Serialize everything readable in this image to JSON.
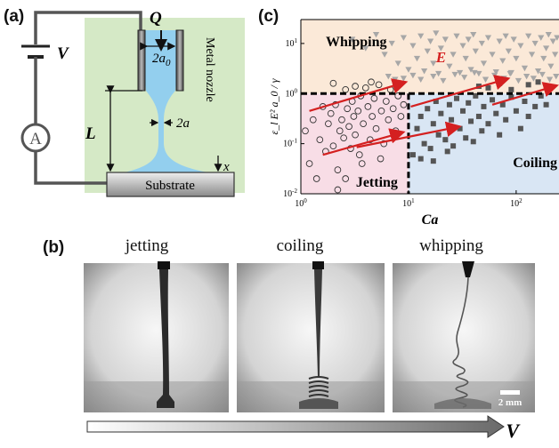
{
  "panel_a": {
    "label": "(a)",
    "flow_label": "Q",
    "voltage_label": "V",
    "ammeter_label": "A",
    "length_label": "L",
    "nozzle_diameter_label": "2a",
    "nozzle_diameter_sub": "0",
    "jet_diameter_label": "2a",
    "axis_x_label": "x",
    "nozzle_label": "Metal nozzle",
    "substrate_label": "Substrate",
    "colors": {
      "background": "#d5e9c6",
      "fluid": "#93cfee",
      "substrate": "#c4c4c4"
    }
  },
  "panel_c": {
    "label": "(c)",
    "regions": {
      "whipping": "Whipping",
      "jetting": "Jetting",
      "coiling": "Coiling"
    },
    "field_label": "E",
    "colors": {
      "whipping": "#fbe9d8",
      "jetting": "#f8dde6",
      "coiling": "#d9e6f4",
      "arrow": "#d42020"
    }
  },
  "chart_data": {
    "type": "scatter",
    "xlabel": "Ca",
    "ylabel": "ε_l E² a_0 / γ",
    "x_scale": "log",
    "y_scale": "log",
    "xlim": [
      1,
      250
    ],
    "ylim": [
      0.01,
      30
    ],
    "x_ticks": [
      "10^0",
      "10^1",
      "10^2"
    ],
    "y_ticks": [
      "10^-2",
      "10^-1",
      "10^0",
      "10^1"
    ],
    "boundaries": {
      "horizontal_y": 1,
      "vertical_x": 10
    },
    "series": [
      {
        "name": "Jetting",
        "marker": "open-circle",
        "color": "#333333",
        "points": [
          [
            1.1,
            0.18
          ],
          [
            1.2,
            0.04
          ],
          [
            1.3,
            0.3
          ],
          [
            1.5,
            0.12
          ],
          [
            1.6,
            0.55
          ],
          [
            1.7,
            0.07
          ],
          [
            1.8,
            0.25
          ],
          [
            1.9,
            0.4
          ],
          [
            2.0,
            0.09
          ],
          [
            2.1,
            0.6
          ],
          [
            2.2,
            0.03
          ],
          [
            2.3,
            0.18
          ],
          [
            2.4,
            0.3
          ],
          [
            2.5,
            0.13
          ],
          [
            2.6,
            0.02
          ],
          [
            2.7,
            0.5
          ],
          [
            2.8,
            0.22
          ],
          [
            2.9,
            0.08
          ],
          [
            3.0,
            0.7
          ],
          [
            3.1,
            0.35
          ],
          [
            3.2,
            0.15
          ],
          [
            3.4,
            0.45
          ],
          [
            3.5,
            0.06
          ],
          [
            3.6,
            0.9
          ],
          [
            3.8,
            0.25
          ],
          [
            4.0,
            1.3
          ],
          [
            4.2,
            0.55
          ],
          [
            4.4,
            0.12
          ],
          [
            4.6,
            0.35
          ],
          [
            4.8,
            0.8
          ],
          [
            5.0,
            0.2
          ],
          [
            5.3,
            1.5
          ],
          [
            5.6,
            0.45
          ],
          [
            5.9,
            0.1
          ],
          [
            6.2,
            0.7
          ],
          [
            6.5,
            0.3
          ],
          [
            6.8,
            1.2
          ],
          [
            7.2,
            0.5
          ],
          [
            7.6,
            0.18
          ],
          [
            8.0,
            0.9
          ],
          [
            8.5,
            0.35
          ],
          [
            9.0,
            0.6
          ],
          [
            2.0,
            1.6
          ],
          [
            2.6,
            1.2
          ],
          [
            3.2,
            1.4
          ],
          [
            4.5,
            1.7
          ],
          [
            1.4,
            0.02
          ],
          [
            2.2,
            0.012
          ],
          [
            3.7,
            0.04
          ],
          [
            5.5,
            0.05
          ]
        ]
      },
      {
        "name": "Coiling",
        "marker": "filled-square",
        "color": "#555555",
        "points": [
          [
            11,
            0.06
          ],
          [
            12,
            0.2
          ],
          [
            13,
            0.35
          ],
          [
            14,
            0.1
          ],
          [
            15,
            0.5
          ],
          [
            16,
            0.08
          ],
          [
            17,
            0.25
          ],
          [
            18,
            0.7
          ],
          [
            19,
            0.15
          ],
          [
            20,
            0.4
          ],
          [
            22,
            0.12
          ],
          [
            24,
            0.6
          ],
          [
            25,
            0.3
          ],
          [
            26,
            0.09
          ],
          [
            28,
            0.8
          ],
          [
            30,
            0.2
          ],
          [
            32,
            0.45
          ],
          [
            34,
            0.13
          ],
          [
            36,
            0.65
          ],
          [
            38,
            0.28
          ],
          [
            40,
            0.11
          ],
          [
            42,
            0.9
          ],
          [
            45,
            0.35
          ],
          [
            48,
            0.18
          ],
          [
            50,
            0.55
          ],
          [
            55,
            0.25
          ],
          [
            60,
            0.75
          ],
          [
            65,
            0.4
          ],
          [
            70,
            0.15
          ],
          [
            75,
            0.6
          ],
          [
            80,
            0.3
          ],
          [
            90,
            0.85
          ],
          [
            100,
            0.45
          ],
          [
            110,
            0.2
          ],
          [
            120,
            0.7
          ],
          [
            130,
            0.35
          ],
          [
            150,
            0.55
          ],
          [
            170,
            0.9
          ],
          [
            190,
            0.6
          ],
          [
            13,
            0.05
          ],
          [
            17,
            0.045
          ],
          [
            23,
            0.07
          ],
          [
            55,
            1.3
          ],
          [
            70,
            1.6
          ],
          [
            90,
            1.2
          ],
          [
            130,
            1.5
          ],
          [
            160,
            1.7
          ],
          [
            45,
            1.4
          ]
        ]
      },
      {
        "name": "Whipping",
        "marker": "filled-triangle-down",
        "color": "#a7a7a7",
        "points": [
          [
            3.0,
            12
          ],
          [
            4.0,
            8
          ],
          [
            5.0,
            15
          ],
          [
            6.0,
            6
          ],
          [
            7.0,
            10
          ],
          [
            8.0,
            4
          ],
          [
            9.0,
            13
          ],
          [
            10,
            3
          ],
          [
            11,
            9
          ],
          [
            12,
            5
          ],
          [
            13,
            14
          ],
          [
            14,
            2.8
          ],
          [
            15,
            7
          ],
          [
            16,
            11
          ],
          [
            17,
            4
          ],
          [
            18,
            16
          ],
          [
            19,
            2.5
          ],
          [
            20,
            8
          ],
          [
            22,
            12
          ],
          [
            24,
            3.5
          ],
          [
            26,
            6
          ],
          [
            28,
            14
          ],
          [
            30,
            2.6
          ],
          [
            32,
            9
          ],
          [
            34,
            5
          ],
          [
            36,
            12
          ],
          [
            38,
            3
          ],
          [
            40,
            15
          ],
          [
            42,
            7
          ],
          [
            45,
            2.5
          ],
          [
            48,
            10
          ],
          [
            50,
            4
          ],
          [
            55,
            13
          ],
          [
            60,
            6
          ],
          [
            65,
            2.7
          ],
          [
            70,
            11
          ],
          [
            75,
            4.5
          ],
          [
            80,
            14
          ],
          [
            85,
            7
          ],
          [
            90,
            2.6
          ],
          [
            95,
            12
          ],
          [
            100,
            5
          ],
          [
            110,
            9
          ],
          [
            120,
            3.2
          ],
          [
            130,
            14
          ],
          [
            140,
            6
          ],
          [
            150,
            10
          ],
          [
            160,
            2.8
          ],
          [
            170,
            13
          ],
          [
            180,
            5
          ],
          [
            190,
            8
          ],
          [
            200,
            15
          ],
          [
            210,
            3.5
          ],
          [
            220,
            11
          ],
          [
            230,
            6
          ],
          [
            240,
            13
          ],
          [
            9,
            2.0
          ],
          [
            11,
            2.3
          ],
          [
            13,
            1.9
          ],
          [
            17,
            2.2
          ],
          [
            21,
            1.8
          ],
          [
            27,
            2.4
          ],
          [
            33,
            2.1
          ],
          [
            41,
            2.6
          ],
          [
            52,
            1.9
          ],
          [
            63,
            2.3
          ],
          [
            77,
            2.0
          ],
          [
            88,
            2.5
          ],
          [
            105,
            1.8
          ],
          [
            125,
            2.2
          ],
          [
            145,
            2.0
          ],
          [
            175,
            2.4
          ],
          [
            205,
            1.9
          ],
          [
            235,
            2.2
          ],
          [
            6.5,
            2.2
          ],
          [
            7.5,
            1.9
          ]
        ]
      }
    ],
    "arrows": [
      [
        [
          1.2,
          0.45
        ],
        [
          9.5,
          1.7
        ]
      ],
      [
        [
          10.5,
          0.55
        ],
        [
          85,
          2.0
        ]
      ],
      [
        [
          1.6,
          0.06
        ],
        [
          9.0,
          0.17
        ]
      ],
      [
        [
          3.3,
          0.085
        ],
        [
          30,
          0.22
        ]
      ],
      [
        [
          60,
          0.6
        ],
        [
          240,
          1.45
        ]
      ]
    ]
  },
  "panel_b": {
    "label": "(b)",
    "photos": [
      {
        "title": "jetting"
      },
      {
        "title": "coiling"
      },
      {
        "title": "whipping"
      }
    ],
    "scale_bar_label": "2 mm",
    "voltage_axis_label": "V"
  }
}
